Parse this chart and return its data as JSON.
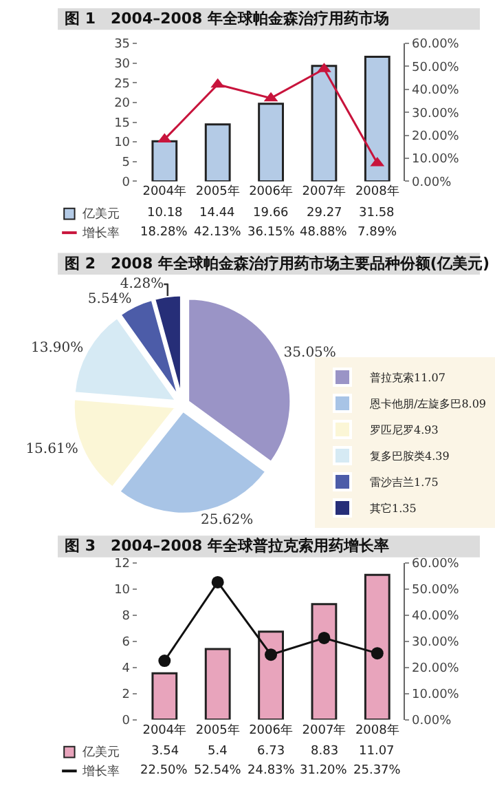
{
  "chart_data": [
    {
      "type": "bar",
      "title": "图 1　2004–2008 年全球帕金森治疗用药市场",
      "categories": [
        "2004年",
        "2005年",
        "2006年",
        "2007年",
        "2008年"
      ],
      "series": [
        {
          "name": "亿美元",
          "type": "bar",
          "color": "#b4cbe6",
          "values": [
            10.18,
            14.44,
            19.66,
            29.27,
            31.58
          ],
          "value_labels": [
            "10.18",
            "14.44",
            "19.66",
            "29.27",
            "31.58"
          ]
        },
        {
          "name": "增长率",
          "type": "line",
          "axis": "y2",
          "color": "#c8143c",
          "marker": "triangle",
          "values": [
            18.28,
            42.13,
            36.15,
            48.88,
            7.89
          ],
          "value_labels": [
            "18.28%",
            "42.13%",
            "36.15%",
            "48.88%",
            "7.89%"
          ]
        }
      ],
      "ylim": [
        0,
        35
      ],
      "yticks": [
        0,
        5,
        10,
        15,
        20,
        25,
        30,
        35
      ],
      "y2lim": [
        0,
        60
      ],
      "y2ticks": [
        {
          "value": 0,
          "label": "0.00%"
        },
        {
          "value": 10,
          "label": "10.00%"
        },
        {
          "value": 20,
          "label": "20.00%"
        },
        {
          "value": 30,
          "label": "30.00%"
        },
        {
          "value": 40,
          "label": "40.00%"
        },
        {
          "value": 50,
          "label": "50.00%"
        },
        {
          "value": 60,
          "label": "60.00%"
        }
      ],
      "legend": "bottom left"
    },
    {
      "type": "pie",
      "title": "图 2　2008 年全球帕金森治疗用药市场主要品种份额(亿美元)",
      "categories": [
        "普拉克索11.07",
        "恩卡他朋/左旋多巴8.09",
        "罗匹尼罗4.93",
        "复多巴胺类4.39",
        "雷沙吉兰1.75",
        "其它1.35"
      ],
      "values": [
        35.05,
        25.62,
        15.61,
        13.9,
        5.54,
        4.28
      ],
      "value_labels": [
        "35.05%",
        "25.62%",
        "15.61%",
        "13.90%",
        "5.54%",
        "4.28%"
      ],
      "colors": [
        "#9a94c6",
        "#a8c4e6",
        "#fbf6d6",
        "#d6eaf4",
        "#4c5ca8",
        "#262e78"
      ],
      "legend": "right"
    },
    {
      "type": "bar",
      "title": "图 3　2004–2008 年全球普拉克索用药增长率",
      "categories": [
        "2004年",
        "2005年",
        "2006年",
        "2007年",
        "2008年"
      ],
      "series": [
        {
          "name": "亿美元",
          "type": "bar",
          "color": "#e8a4bc",
          "values": [
            3.54,
            5.4,
            6.73,
            8.83,
            11.07
          ],
          "value_labels": [
            "3.54",
            "5.4",
            "6.73",
            "8.83",
            "11.07"
          ]
        },
        {
          "name": "增长率",
          "type": "line",
          "axis": "y2",
          "color": "#111111",
          "marker": "circle",
          "values": [
            22.5,
            52.54,
            24.83,
            31.2,
            25.37
          ],
          "value_labels": [
            "22.50%",
            "52.54%",
            "24.83%",
            "31.20%",
            "25.37%"
          ]
        }
      ],
      "ylim": [
        0,
        12
      ],
      "yticks": [
        0,
        2,
        4,
        6,
        8,
        10,
        12
      ],
      "y2lim": [
        0,
        60
      ],
      "y2ticks": [
        {
          "value": 0,
          "label": "0.00%"
        },
        {
          "value": 10,
          "label": "10.00%"
        },
        {
          "value": 20,
          "label": "20.00%"
        },
        {
          "value": 30,
          "label": "30.00%"
        },
        {
          "value": 40,
          "label": "40.00%"
        },
        {
          "value": 50,
          "label": "50.00%"
        },
        {
          "value": 60,
          "label": "60.00%"
        }
      ],
      "legend": "bottom left"
    }
  ]
}
